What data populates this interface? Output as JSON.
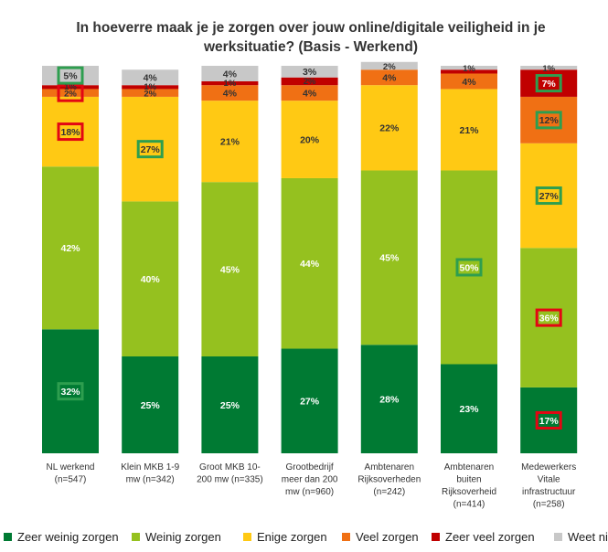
{
  "chart_data": {
    "type": "bar",
    "stacked": true,
    "title_lines": [
      "In hoeverre maak je je zorgen over jouw online/digitale veiligheid in je",
      "werksituatie? (Basis - Werkend)"
    ],
    "categories": [
      [
        "NL werkend",
        "(n=547)"
      ],
      [
        "Klein MKB 1-9",
        "mw  (n=342)"
      ],
      [
        "Groot MKB 10-",
        "200 mw  (n=335)"
      ],
      [
        "Grootbedrijf",
        "meer dan 200",
        "mw  (n=960)"
      ],
      [
        "Ambtenaren",
        "Rijksoverheden",
        "(n=242)"
      ],
      [
        "Ambtenaren",
        "buiten",
        "Rijksoverheid",
        "(n=414)"
      ],
      [
        "Medewerkers",
        "Vitale",
        "infrastructuur",
        "(n=258)"
      ]
    ],
    "ylim": [
      0,
      100
    ],
    "series": [
      {
        "name": "Zeer weinig zorgen",
        "color": "#007a33",
        "values": [
          32,
          25,
          25,
          27,
          28,
          23,
          17
        ]
      },
      {
        "name": "Weinig zorgen",
        "color": "#95c11f",
        "values": [
          42,
          40,
          45,
          44,
          45,
          50,
          36
        ]
      },
      {
        "name": "Enige zorgen",
        "color": "#ffc914",
        "values": [
          18,
          27,
          21,
          20,
          22,
          21,
          27
        ]
      },
      {
        "name": "Veel zorgen",
        "color": "#f07014",
        "values": [
          2,
          2,
          4,
          4,
          4,
          4,
          12
        ]
      },
      {
        "name": "Zeer veel zorgen",
        "color": "#c00000",
        "values": [
          1,
          1,
          1,
          2,
          0,
          1,
          7
        ]
      },
      {
        "name": "Weet niet",
        "color": "#c8c8c8",
        "values": [
          5,
          4,
          4,
          3,
          2,
          1,
          1
        ]
      }
    ],
    "data_labels": [
      [
        "32%",
        "42%",
        "18%",
        "2%",
        "1%",
        "5%"
      ],
      [
        "25%",
        "40%",
        "27%",
        "2%",
        "1%",
        "4%"
      ],
      [
        "25%",
        "45%",
        "21%",
        "4%",
        "1%",
        "4%"
      ],
      [
        "27%",
        "44%",
        "20%",
        "4%",
        "2%",
        "3%"
      ],
      [
        "28%",
        "45%",
        "22%",
        "4%",
        "",
        "2%"
      ],
      [
        "23%",
        "50%",
        "21%",
        "4%",
        "",
        "1%"
      ],
      [
        "17%",
        "36%",
        "27%",
        "12%",
        "7%",
        "1%"
      ]
    ],
    "highlights": [
      {
        "category": 0,
        "series": 0,
        "color": "#2e9e4f"
      },
      {
        "category": 0,
        "series": 2,
        "color": "#e30613"
      },
      {
        "category": 0,
        "series": 3,
        "color": "#e30613"
      },
      {
        "category": 0,
        "series": 5,
        "color": "#2e9e4f"
      },
      {
        "category": 1,
        "series": 2,
        "color": "#2e9e4f"
      },
      {
        "category": 5,
        "series": 1,
        "color": "#2e9e4f"
      },
      {
        "category": 6,
        "series": 0,
        "color": "#e30613"
      },
      {
        "category": 6,
        "series": 1,
        "color": "#e30613"
      },
      {
        "category": 6,
        "series": 2,
        "color": "#2e9e4f"
      },
      {
        "category": 6,
        "series": 3,
        "color": "#2e9e4f"
      },
      {
        "category": 6,
        "series": 4,
        "color": "#2e9e4f"
      }
    ],
    "legend_position": "bottom",
    "grid": false
  }
}
